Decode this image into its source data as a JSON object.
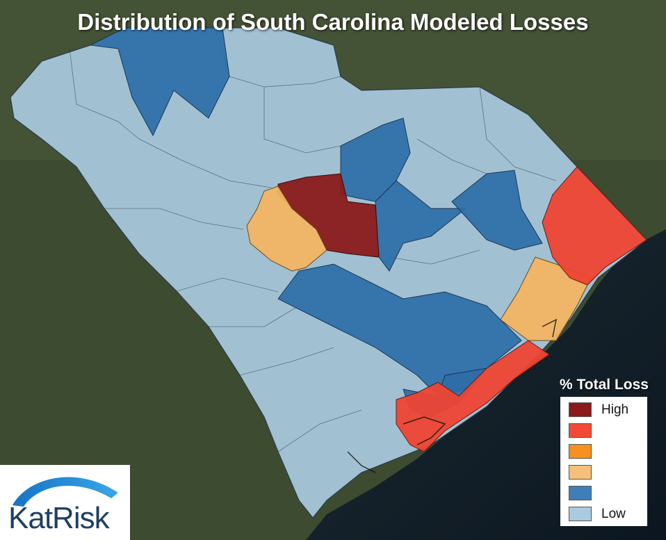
{
  "title": "Distribution of South Carolina Modeled Losses",
  "legend": {
    "title": "% Total Loss",
    "items": [
      {
        "label": "High",
        "color": "#8b1a1a"
      },
      {
        "label": "",
        "color": "#f24a36"
      },
      {
        "label": "",
        "color": "#f7901e"
      },
      {
        "label": "",
        "color": "#f6c07a"
      },
      {
        "label": "",
        "color": "#3f7fb9"
      },
      {
        "label": "Low",
        "color": "#a9cbe0"
      }
    ]
  },
  "logo": {
    "text": "KatRisk"
  },
  "colors": {
    "high": "#8b1a1a",
    "red": "#ee4433",
    "orange": "#f3b463",
    "blue": "#2d6ea8",
    "light": "#a9cbe0",
    "ocean": "#0f1d28",
    "land": "#3b4a2f"
  }
}
